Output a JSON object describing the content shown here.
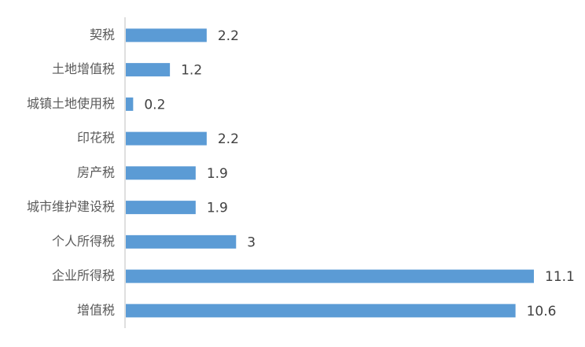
{
  "chart_data": {
    "type": "barh",
    "categories": [
      "契税",
      "土地增值税",
      "城镇土地使用税",
      "印花税",
      "房产税",
      "城市维护建设税",
      "个人所得税",
      "企业所得税",
      "增值税"
    ],
    "values": [
      2.2,
      1.2,
      0.2,
      2.2,
      1.9,
      1.9,
      3,
      11.1,
      10.6
    ],
    "color": "#5b9bd5"
  }
}
